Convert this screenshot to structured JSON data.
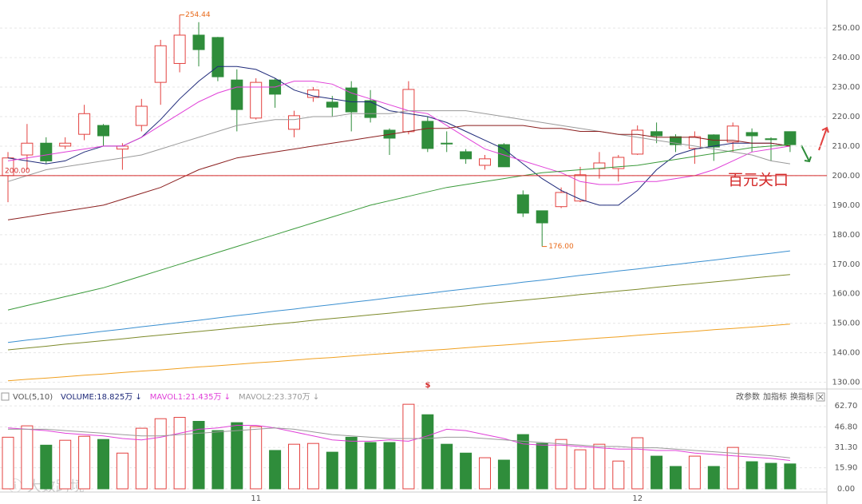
{
  "chart_data": [
    {
      "type": "candlestick",
      "open": [
        200,
        207,
        211,
        210,
        214,
        217,
        209,
        217,
        231.6,
        238,
        247.6,
        246.8,
        232.4,
        219.5,
        232.4,
        215.7,
        226.5,
        224.9,
        229.7,
        225.4,
        215.4,
        214.9,
        218.4,
        211,
        208.1,
        203.5,
        210.5,
        193.5,
        188.1,
        189.5,
        191.4,
        202.4,
        202.4,
        207.3,
        214.9,
        213.2,
        209.2,
        213.8,
        211.4,
        214.6,
        212.5,
        214.9
      ],
      "high": [
        208,
        217.5,
        213,
        213,
        224,
        217.5,
        211,
        226,
        246,
        254.44,
        252,
        247,
        236,
        233,
        233,
        222,
        230,
        227,
        232,
        229,
        216,
        232,
        220,
        215,
        209,
        207,
        211,
        195,
        188,
        196,
        203,
        208,
        207,
        217,
        218,
        214,
        215,
        214,
        218,
        216,
        213,
        215
      ],
      "low": [
        191,
        202,
        204,
        209,
        212,
        210,
        202,
        215,
        224,
        235,
        237,
        232,
        215,
        219,
        223,
        213,
        225,
        220,
        215,
        218,
        207,
        214,
        208,
        208,
        204,
        202,
        203,
        186,
        176,
        189,
        191,
        199,
        198,
        207,
        211,
        208,
        204,
        205,
        208,
        208,
        205,
        208
      ],
      "close": [
        206,
        211,
        205,
        211,
        221,
        213.5,
        210,
        223.5,
        244,
        247.6,
        242.7,
        233.5,
        222.4,
        231.6,
        227.6,
        220.3,
        229,
        223.2,
        221.6,
        219.7,
        212.7,
        229.2,
        209.2,
        210.8,
        205.7,
        205.7,
        203,
        187.3,
        184,
        194.3,
        200.3,
        204.3,
        206.2,
        215.4,
        213.5,
        210.5,
        213.2,
        209.7,
        216.8,
        213.5,
        212.2,
        210.5
      ],
      "up_color": "#e3413f",
      "down_color": "#2f8d3b",
      "series": [
        {
          "color": "#1f2a7a",
          "values": [
            206,
            205,
            204,
            205,
            208,
            210,
            210,
            213,
            219,
            226,
            232,
            237,
            237,
            236,
            233,
            229,
            227,
            226,
            225,
            225,
            222,
            221,
            220,
            218,
            215,
            212,
            209,
            204,
            199,
            195,
            192,
            190,
            190,
            195,
            202,
            207,
            209,
            210,
            211,
            211,
            211,
            210
          ]
        },
        {
          "color": "#e040d8",
          "values": [
            205,
            206,
            207,
            208,
            209,
            210,
            210,
            213,
            217,
            221,
            225,
            228,
            230,
            230,
            230,
            232,
            232,
            231,
            228,
            226,
            224,
            222,
            221,
            217,
            213,
            209,
            207,
            205,
            203,
            201,
            198,
            197,
            197,
            198,
            198,
            199,
            200,
            202,
            205,
            208,
            209,
            210
          ]
        },
        {
          "color": "#9a9a9a",
          "values": [
            198,
            200,
            202,
            203,
            204,
            205,
            206,
            207,
            209,
            211,
            213,
            215,
            217,
            218,
            219,
            219,
            220,
            220,
            221,
            221,
            221,
            222,
            222,
            222,
            222,
            221,
            220,
            219,
            218,
            217,
            216,
            215,
            214,
            213,
            212,
            211,
            210,
            209,
            208,
            207,
            205,
            204
          ]
        },
        {
          "color": "#8b1f1f",
          "values": [
            185,
            186,
            187,
            188,
            189,
            190,
            192,
            194,
            196,
            199,
            202,
            204,
            206,
            207,
            208,
            209,
            210,
            211,
            212,
            213,
            214,
            215,
            216,
            216,
            217,
            217,
            217,
            217,
            216,
            216,
            215,
            215,
            214,
            214,
            213,
            213,
            213,
            212,
            212,
            211,
            211,
            210
          ]
        },
        {
          "color": "#3a9a3a",
          "values": [
            154.5,
            156,
            157.5,
            159,
            160.5,
            162,
            164,
            166,
            168,
            170,
            172,
            174,
            176,
            178,
            180,
            182,
            184,
            186,
            188,
            190,
            191.5,
            193,
            194.5,
            196,
            197,
            198,
            199,
            200,
            201,
            201.5,
            202,
            202.5,
            203,
            203.5,
            204.5,
            205.5,
            206.5,
            207.5,
            208.5,
            209.5,
            210,
            210.5
          ]
        },
        {
          "color": "#3a8fd0",
          "values": [
            143.5,
            144.3,
            145,
            145.8,
            146.5,
            147.3,
            148,
            148.8,
            149.5,
            150.3,
            151,
            151.8,
            152.6,
            153.3,
            154.1,
            154.8,
            155.6,
            156.3,
            157.1,
            157.8,
            158.6,
            159.4,
            160.1,
            160.9,
            161.6,
            162.4,
            163.1,
            163.9,
            164.6,
            165.4,
            166.2,
            166.9,
            167.7,
            168.4,
            169.2,
            169.9,
            170.7,
            171.4,
            172.2,
            173,
            173.7,
            174.5
          ]
        },
        {
          "color": "#7d8a2a",
          "values": [
            141,
            141.6,
            142.2,
            142.9,
            143.5,
            144.1,
            144.7,
            145.4,
            146,
            146.6,
            147.2,
            147.8,
            148.5,
            149.1,
            149.7,
            150.3,
            151,
            151.6,
            152.2,
            152.8,
            153.4,
            154.1,
            154.7,
            155.3,
            155.9,
            156.6,
            157.2,
            157.8,
            158.4,
            159,
            159.7,
            160.3,
            160.9,
            161.5,
            162.2,
            162.8,
            163.4,
            164,
            164.6,
            165.3,
            165.9,
            166.5
          ]
        },
        {
          "color": "#f0a020",
          "values": [
            130.5,
            131,
            131.4,
            131.9,
            132.4,
            132.8,
            133.3,
            133.8,
            134.2,
            134.7,
            135.2,
            135.6,
            136.1,
            136.6,
            137,
            137.5,
            138,
            138.4,
            138.9,
            139.4,
            139.8,
            140.3,
            140.8,
            141.2,
            141.7,
            142.2,
            142.6,
            143.1,
            143.6,
            144,
            144.5,
            145,
            145.4,
            145.9,
            146.4,
            146.8,
            147.3,
            147.8,
            148.2,
            148.7,
            149.2,
            149.7
          ]
        }
      ],
      "ylim": [
        128,
        259.5
      ],
      "yticks": [
        {
          "value": 130,
          "label": "130.00"
        },
        {
          "value": 140,
          "label": "140.00"
        },
        {
          "value": 150,
          "label": "150.00"
        },
        {
          "value": 160,
          "label": "160.00"
        },
        {
          "value": 170,
          "label": "170.00"
        },
        {
          "value": 180,
          "label": "180.00"
        },
        {
          "value": 190,
          "label": "190.00"
        },
        {
          "value": 200,
          "label": "200.00"
        },
        {
          "value": 210,
          "label": "210.00"
        },
        {
          "value": 220,
          "label": "220.00"
        },
        {
          "value": 230,
          "label": "230.00"
        },
        {
          "value": 240,
          "label": "240.00"
        },
        {
          "value": 250,
          "label": "250.00"
        }
      ],
      "grid": true,
      "reference_line": {
        "value": 200,
        "label": "200.00",
        "color": "#d42a2a"
      },
      "low_annotation": {
        "value": 176,
        "label": "176.00"
      },
      "annotation_text": "百元关口"
    },
    {
      "type": "volume",
      "indicator": "VOL(5,10)",
      "categories": [
        null,
        null,
        null,
        null,
        null,
        null,
        null,
        null,
        null,
        null,
        null,
        null,
        null,
        "11",
        null,
        null,
        null,
        null,
        null,
        null,
        null,
        null,
        null,
        null,
        null,
        null,
        null,
        null,
        null,
        null,
        null,
        null,
        null,
        "12",
        null,
        null,
        null,
        null,
        null,
        null,
        null,
        null
      ],
      "series": [
        {
          "name": "VOLUME:18.825万 ↓",
          "color": "#1f2a7a",
          "values": [
            39,
            47.6,
            33,
            36.7,
            39.7,
            37.3,
            27,
            45.8,
            53,
            54,
            51,
            44,
            50,
            47,
            29,
            33.7,
            34.3,
            27.7,
            39,
            35,
            35,
            63.9,
            56,
            33.7,
            27,
            23.5,
            21.7,
            41,
            34.3,
            37.3,
            29.5,
            33.7,
            21,
            38.6,
            24.7,
            16.9,
            24.7,
            16.9,
            31.3,
            20.5,
            19.3,
            18.825
          ]
        },
        {
          "name": "MAVOL1:21.435万 ↓",
          "color": "#e040d8",
          "values": [
            46,
            45,
            44,
            42,
            41,
            40,
            38,
            37,
            39,
            42,
            45,
            46,
            48,
            48,
            46,
            43,
            40,
            37,
            36,
            36,
            37,
            36,
            40,
            45,
            44,
            41,
            38,
            34,
            33,
            33,
            32,
            31,
            30,
            30,
            29,
            29,
            27,
            26,
            25,
            24,
            23,
            21.435
          ]
        },
        {
          "name": "MAVOL2:23.370万 ↓",
          "color": "#9a9a9a",
          "values": [
            45,
            45,
            45,
            44,
            43,
            42,
            41,
            40,
            40,
            41,
            42,
            43,
            44,
            45,
            46,
            45,
            43,
            41,
            40,
            39,
            38,
            38,
            38,
            39,
            39,
            38,
            37,
            36,
            35,
            34,
            33,
            32,
            32,
            31,
            31,
            30,
            29,
            28,
            27,
            26,
            25,
            23.37
          ]
        }
      ],
      "ylim": [
        0,
        67
      ],
      "yticks": [
        {
          "value": 0,
          "label": "0.00"
        },
        {
          "value": 15.9,
          "label": "15.90"
        },
        {
          "value": 31.3,
          "label": "31.30"
        },
        {
          "value": 46.8,
          "label": "46.80"
        },
        {
          "value": 62.7,
          "label": "62.70"
        }
      ],
      "buttons": [
        "改参数",
        "加指标",
        "换指标"
      ]
    }
  ]
}
